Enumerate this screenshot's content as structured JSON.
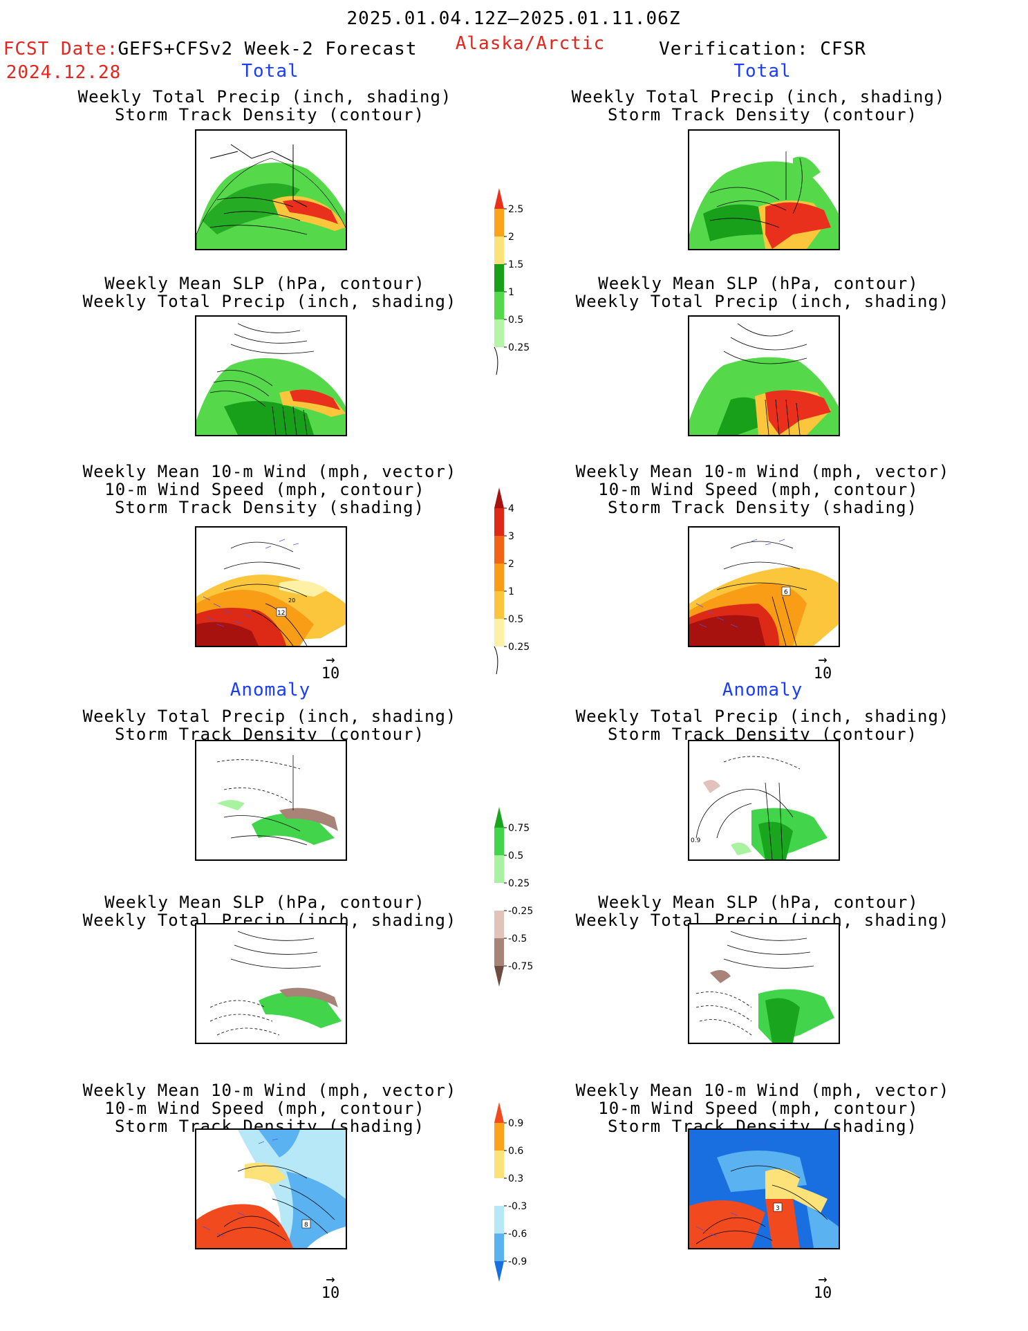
{
  "header": {
    "period": "2025.01.04.12Z–2025.01.11.06Z",
    "fcst_label": "FCST Date:",
    "fcst_model": "GEFS+CFSv2 Week-2 Forecast",
    "fcst_date": "2024.12.28",
    "region": "Alaska/Arctic",
    "verification": "Verification: CFSR"
  },
  "sections": {
    "total": "Total",
    "anomaly": "Anomaly"
  },
  "titles": {
    "precip_track": [
      "Weekly Total Precip (inch, shading)",
      "Storm Track Density (contour)"
    ],
    "slp_precip": [
      "Weekly Mean SLP (hPa, contour)",
      "Weekly Total Precip (inch, shading)"
    ],
    "wind_track": [
      "Weekly Mean 10-m Wind (mph, vector)",
      "10-m Wind Speed (mph, contour)",
      "Storm Track Density (shading)"
    ]
  },
  "vector_ref": "10",
  "panel_labels": {
    "fcst_total_wind": [
      "12",
      "20"
    ],
    "verif_total_wind": [
      "6"
    ],
    "verif_anom_track": [
      "0.9"
    ],
    "fcst_anom_wind": [
      "8"
    ],
    "verif_anom_wind": [
      "3"
    ]
  },
  "colorbars": {
    "total_precip": {
      "labels": [
        "2.5",
        "2",
        "1.5",
        "1",
        "0.5",
        "0.25"
      ],
      "colors": [
        "#e8301c",
        "#fba31a",
        "#fde27a",
        "#19a01a",
        "#55d94a",
        "#b4f5a8"
      ]
    },
    "total_track": {
      "labels": [
        "4",
        "3",
        "2",
        "1",
        "0.5",
        "0.25"
      ],
      "colors": [
        "#a8120e",
        "#dc2a16",
        "#f26316",
        "#f99c16",
        "#fbc63c",
        "#fef1a6"
      ]
    },
    "anom_precip": {
      "labels": [
        "0.75",
        "0.5",
        "0.25",
        "-0.25",
        "-0.5",
        "-0.75"
      ],
      "colors": [
        "#1aa51e",
        "#42d44a",
        "#a9f2a0",
        "#ffffff",
        "#e2c3bb",
        "#a88478",
        "#6e4b40"
      ]
    },
    "anom_track": {
      "labels": [
        "0.9",
        "0.6",
        "0.3",
        "-0.3",
        "-0.6",
        "-0.9"
      ],
      "colors": [
        "#f04a1e",
        "#fba31a",
        "#fde27a",
        "#ffffff",
        "#b7e8f8",
        "#5ab2f0",
        "#1a6fe0"
      ]
    }
  }
}
